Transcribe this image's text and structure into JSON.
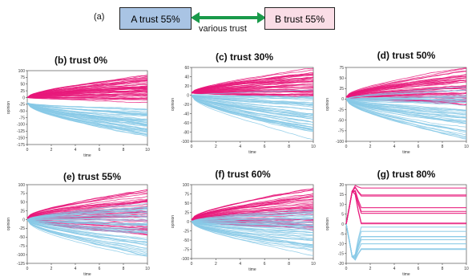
{
  "panel_a": {
    "label": "(a)",
    "box_a": "A trust 55%",
    "box_b": "B trust 55%",
    "arrow_label": "various trust",
    "colors": {
      "box_a": "#a9c4e4",
      "box_b": "#fadde6",
      "arrow": "#1a9a4a"
    }
  },
  "colors": {
    "group_a": "#e8187a",
    "group_b": "#87c9e6"
  },
  "chart_data": [
    {
      "id": "b",
      "type": "line",
      "title": "(b) trust 0%",
      "xlabel": "time",
      "ylabel": "opinion",
      "xlim": [
        0,
        10
      ],
      "ylim": [
        -175,
        100
      ],
      "xticks": [
        0,
        2,
        4,
        6,
        8,
        10
      ],
      "yticks": [
        100,
        75,
        50,
        25,
        0,
        -25,
        -50,
        -75,
        -100,
        -125,
        -150,
        -175
      ],
      "series": [
        {
          "group": "A",
          "start": 0,
          "end_min": -20,
          "end_max": 90,
          "count": 45
        },
        {
          "group": "B",
          "start": -20,
          "end_min": -150,
          "end_max": -40,
          "count": 45
        }
      ]
    },
    {
      "id": "c",
      "type": "line",
      "title": "(c) trust 30%",
      "xlabel": "time",
      "ylabel": "opinion",
      "xlim": [
        0,
        10
      ],
      "ylim": [
        -100,
        60
      ],
      "xticks": [
        0,
        2,
        4,
        6,
        8,
        10
      ],
      "yticks": [
        60,
        40,
        20,
        0,
        -20,
        -40,
        -60,
        -80,
        -100
      ],
      "series": [
        {
          "group": "A",
          "start": 5,
          "end_min": -10,
          "end_max": 58,
          "count": 45
        },
        {
          "group": "B",
          "start": 0,
          "end_min": -95,
          "end_max": 10,
          "count": 45
        }
      ]
    },
    {
      "id": "d",
      "type": "line",
      "title": "(d) trust 50%",
      "xlabel": "time",
      "ylabel": "opinion",
      "xlim": [
        0,
        10
      ],
      "ylim": [
        -100,
        75
      ],
      "xticks": [
        0,
        2,
        4,
        6,
        8,
        10
      ],
      "yticks": [
        75,
        50,
        25,
        0,
        -25,
        -50,
        -75,
        -100
      ],
      "series": [
        {
          "group": "A",
          "start": 5,
          "end_min": -20,
          "end_max": 75,
          "count": 45
        },
        {
          "group": "B",
          "start": 0,
          "end_min": -100,
          "end_max": 30,
          "count": 45
        }
      ]
    },
    {
      "id": "e",
      "type": "line",
      "title": "(e) trust 55%",
      "xlabel": "time",
      "ylabel": "opinion",
      "xlim": [
        0,
        10
      ],
      "ylim": [
        -125,
        100
      ],
      "xticks": [
        0,
        2,
        4,
        6,
        8,
        10
      ],
      "yticks": [
        100,
        75,
        50,
        25,
        0,
        -25,
        -50,
        -75,
        -100,
        -125
      ],
      "series": [
        {
          "group": "A",
          "start": 5,
          "end_min": -60,
          "end_max": 90,
          "count": 45
        },
        {
          "group": "B",
          "start": 0,
          "end_min": -120,
          "end_max": 60,
          "count": 45
        }
      ]
    },
    {
      "id": "f",
      "type": "line",
      "title": "(f) trust 60%",
      "xlabel": "time",
      "ylabel": "opinion",
      "xlim": [
        0,
        10
      ],
      "ylim": [
        -100,
        100
      ],
      "xticks": [
        0,
        2,
        4,
        6,
        8,
        10
      ],
      "yticks": [
        100,
        75,
        50,
        25,
        0,
        -25,
        -50,
        -75,
        -100
      ],
      "series": [
        {
          "group": "A",
          "start": 5,
          "end_min": -30,
          "end_max": 95,
          "count": 45
        },
        {
          "group": "B",
          "start": 0,
          "end_min": -90,
          "end_max": 40,
          "count": 45
        }
      ]
    },
    {
      "id": "g",
      "type": "line",
      "title": "(g) trust 80%",
      "xlabel": "time",
      "ylabel": "opinion",
      "xlim": [
        0,
        10
      ],
      "ylim": [
        -20,
        20
      ],
      "xticks": [
        0,
        2,
        4,
        6,
        8,
        10
      ],
      "yticks": [
        20,
        15,
        10,
        5,
        0,
        -5,
        -10,
        -15,
        -20
      ],
      "series": [
        {
          "group": "A",
          "start": 0,
          "end_min": -3,
          "end_max": 20,
          "count": 8
        },
        {
          "group": "B",
          "start": 0,
          "end_min": -15,
          "end_max": -1,
          "count": 8
        }
      ]
    }
  ]
}
